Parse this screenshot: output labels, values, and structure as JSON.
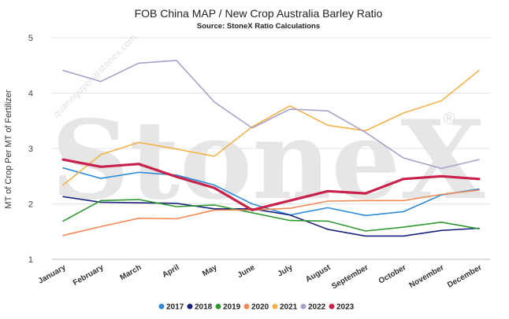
{
  "chart_data": {
    "type": "line",
    "title": "FOB China MAP / New Crop Australia Barley Ratio",
    "subtitle": "Source: StoneX Ratio Calculations",
    "ylabel": "MT of Crop Per MT of Fertilizer",
    "xlabel": "",
    "ylim": [
      1,
      5
    ],
    "yticks": [
      "1",
      "2",
      "3",
      "4",
      "5"
    ],
    "grid": true,
    "legend_position": "bottom",
    "categories": [
      "January",
      "February",
      "March",
      "April",
      "May",
      "June",
      "July",
      "August",
      "September",
      "October",
      "November",
      "December"
    ],
    "series": [
      {
        "name": "2017",
        "color": "#2e8bd8",
        "width": 1.6,
        "values": [
          2.65,
          2.46,
          2.57,
          2.52,
          2.34,
          2.0,
          1.8,
          1.93,
          1.79,
          1.86,
          2.16,
          2.27
        ]
      },
      {
        "name": "2018",
        "color": "#1a237e",
        "width": 1.6,
        "values": [
          2.13,
          2.03,
          2.02,
          2.01,
          1.91,
          1.91,
          1.8,
          1.54,
          1.42,
          1.42,
          1.52,
          1.56
        ]
      },
      {
        "name": "2019",
        "color": "#2e9a2e",
        "width": 1.6,
        "values": [
          1.69,
          2.06,
          2.08,
          1.95,
          1.98,
          1.84,
          1.7,
          1.69,
          1.51,
          1.58,
          1.67,
          1.55
        ]
      },
      {
        "name": "2020",
        "color": "#f28a55",
        "width": 1.6,
        "values": [
          1.43,
          1.59,
          1.74,
          1.73,
          1.89,
          1.89,
          1.92,
          2.05,
          2.06,
          2.06,
          2.17,
          2.25
        ]
      },
      {
        "name": "2021",
        "color": "#f3b24a",
        "width": 1.6,
        "values": [
          2.34,
          2.89,
          3.11,
          2.99,
          2.86,
          3.39,
          3.77,
          3.42,
          3.32,
          3.64,
          3.86,
          4.41
        ]
      },
      {
        "name": "2022",
        "color": "#a8a2c8",
        "width": 1.6,
        "values": [
          4.41,
          4.21,
          4.54,
          4.59,
          3.84,
          3.37,
          3.71,
          3.68,
          3.29,
          2.83,
          2.64,
          2.8
        ]
      },
      {
        "name": "2023",
        "color": "#c8224a",
        "width": 3.2,
        "values": [
          2.8,
          2.67,
          2.72,
          2.49,
          2.29,
          1.89,
          2.06,
          2.23,
          2.19,
          2.45,
          2.5,
          2.45
        ]
      }
    ]
  },
  "watermark": {
    "brand": "StoneX",
    "registered": "®",
    "tag_text": "quannguyen@stonex.com"
  }
}
